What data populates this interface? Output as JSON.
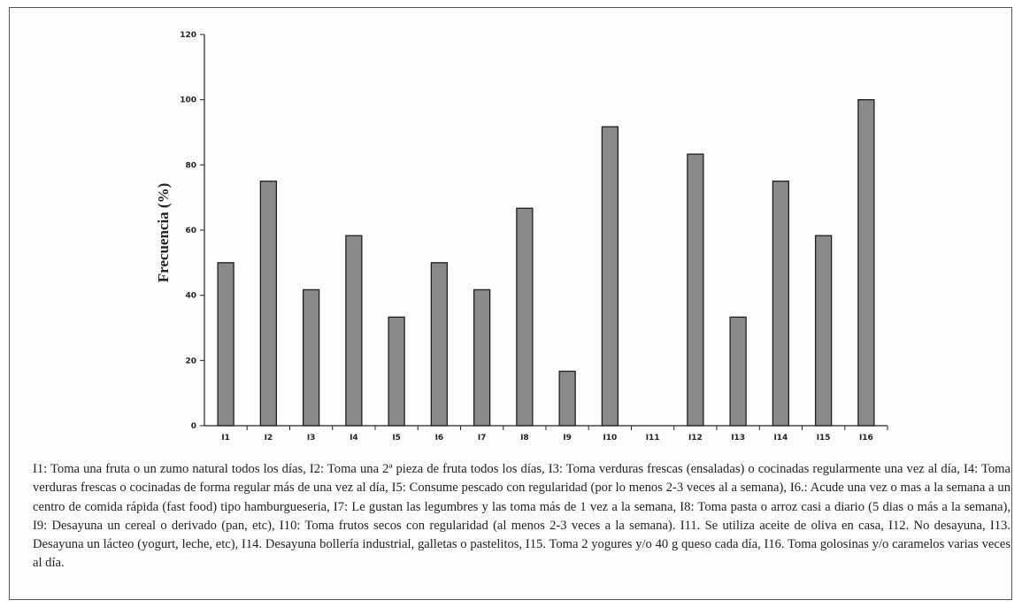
{
  "chart_data": {
    "type": "bar",
    "title": "",
    "xlabel": "",
    "ylabel": "Frecuencia (%)",
    "ylim": [
      0,
      120
    ],
    "yticks": [
      0,
      20,
      40,
      60,
      80,
      100,
      120
    ],
    "grid": false,
    "categories": [
      "I1",
      "I2",
      "I3",
      "I4",
      "I5",
      "I6",
      "I7",
      "I8",
      "I9",
      "I10",
      "I11",
      "I12",
      "I13",
      "I14",
      "I15",
      "I16"
    ],
    "values": [
      50,
      75,
      41.7,
      58.3,
      33.3,
      50,
      41.7,
      66.7,
      16.7,
      91.7,
      0,
      83.3,
      33.3,
      75,
      58.3,
      100
    ],
    "colors": {
      "bar_fill": "#8a8a8a",
      "bar_stroke": "#1e1e1e",
      "axis": "#222222"
    }
  },
  "caption": "I1: Toma una fruta o un zumo natural todos los días, I2: Toma una 2ª pieza de fruta todos los días, I3: Toma verduras frescas (ensaladas) o cocinadas regularmente una  vez al día, I4: Toma verduras frescas o cocinadas de forma regular más de una  vez al día, I5: Consume pescado con regularidad (por lo menos 2-3 veces al a  semana),  I6.: Acude una vez o mas a la semana a un centro de comida rápida  (fast food) tipo hamburgueseria, I7: Le gustan las legumbres y las toma más de 1 vez a la semana, I8: Toma pasta o arroz casi a diario (5 dias o más a la semana), I9: Desayuna un cereal o derivado (pan, etc), I10: Toma frutos secos con regularidad (al menos 2-3 veces a la  semana). I11. Se utiliza aceite de oliva en casa, I12. No desayuna, I13. Desayuna un lácteo (yogurt, leche, etc), I14. Desayuna bollería industrial, galletas o pastelitos, I15. Toma 2 yogures y/o 40 g queso cada día, I16. Toma golosinas y/o caramelos varias veces al día."
}
